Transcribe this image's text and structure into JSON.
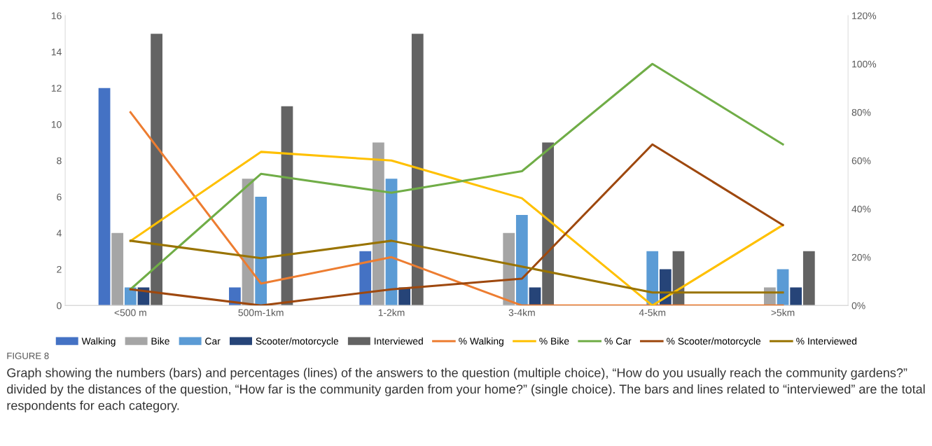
{
  "chart_data": {
    "type": "bar",
    "categories": [
      "<500 m",
      "500m-1km",
      "1-2km",
      "3-4km",
      "4-5km",
      ">5km"
    ],
    "series": [
      {
        "name": "Walking",
        "color": "#4472c4",
        "values": [
          12,
          1,
          3,
          0,
          0,
          0
        ]
      },
      {
        "name": "Bike",
        "color": "#a5a5a5",
        "values": [
          4,
          7,
          9,
          4,
          0,
          1
        ]
      },
      {
        "name": "Car",
        "color": "#5b9bd5",
        "values": [
          1,
          6,
          7,
          5,
          3,
          2
        ]
      },
      {
        "name": "Scooter/motorcycle",
        "color": "#264478",
        "values": [
          1,
          0,
          1,
          1,
          2,
          1
        ]
      },
      {
        "name": "Interviewed",
        "color": "#636363",
        "values": [
          15,
          11,
          15,
          9,
          3,
          3
        ]
      },
      {
        "name": "% Walking",
        "type": "line",
        "axis": "y2",
        "color": "#ed7d31",
        "values": [
          80,
          9.1,
          20,
          0,
          0,
          0
        ]
      },
      {
        "name": "% Bike",
        "type": "line",
        "axis": "y2",
        "color": "#ffc000",
        "values": [
          26.7,
          63.6,
          60,
          44.4,
          0,
          33.3
        ]
      },
      {
        "name": "% Car",
        "type": "line",
        "axis": "y2",
        "color": "#70ad47",
        "values": [
          6.7,
          54.5,
          46.7,
          55.6,
          100,
          66.7
        ]
      },
      {
        "name": "% Scooter/motorcycle",
        "type": "line",
        "axis": "y2",
        "color": "#9e480e",
        "values": [
          6.7,
          0,
          6.7,
          11.1,
          66.7,
          33.3
        ]
      },
      {
        "name": "% Interviewed",
        "type": "line",
        "axis": "y2",
        "color": "#997300",
        "values": [
          26.8,
          19.6,
          26.8,
          16.1,
          5.4,
          5.4
        ]
      }
    ],
    "ylim": [
      0,
      16
    ],
    "yticks": [
      0,
      2,
      4,
      6,
      8,
      10,
      12,
      14,
      16
    ],
    "y2lim": [
      0,
      120
    ],
    "y2ticks": [
      {
        "value": 0,
        "label": "0%"
      },
      {
        "value": 20,
        "label": "20%"
      },
      {
        "value": 40,
        "label": "40%"
      },
      {
        "value": 60,
        "label": "60%"
      },
      {
        "value": 80,
        "label": "80%"
      },
      {
        "value": 100,
        "label": "100%"
      },
      {
        "value": 120,
        "label": "120%"
      }
    ],
    "grid": false,
    "legend": "bottom",
    "marker": "none",
    "line_style": "solid",
    "annotations": [
      "FIGURE 8",
      "Graph showing the numbers (bars) and percentages (lines) of the answers to the question (multiple choice), “How do you usually reach the community gardens?” divided by the distances of the question, “How far is the community garden from your home?” (single choice). The bars and lines related to “interviewed” are the total respondents for each category."
    ]
  }
}
